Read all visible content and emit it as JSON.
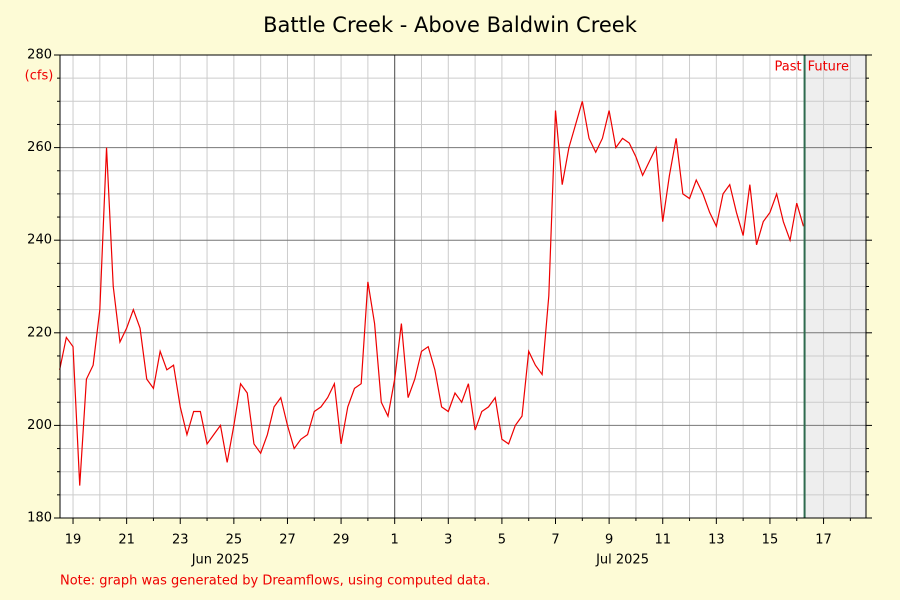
{
  "chart_data": {
    "type": "line",
    "title": "Battle Creek - Above Baldwin Creek",
    "y_label": "(cfs)",
    "note": "Note: graph was generated by Dreamflows, using computed data.",
    "color": "#ee0000",
    "ylim": [
      180,
      280
    ],
    "yticks": [
      180,
      200,
      220,
      240,
      260,
      280
    ],
    "y_minor_ticks": [
      185,
      190,
      195,
      205,
      210,
      215,
      225,
      230,
      235,
      245,
      250,
      255,
      265,
      270,
      275
    ],
    "xlim": [
      "2025-06-18T12:20",
      "2025-07-18T14:00"
    ],
    "xticks": [
      {
        "value": "2025-06-19T00:00",
        "label": "19"
      },
      {
        "value": "2025-06-21T00:00",
        "label": "21"
      },
      {
        "value": "2025-06-23T00:00",
        "label": "23"
      },
      {
        "value": "2025-06-25T00:00",
        "label": "25"
      },
      {
        "value": "2025-06-27T00:00",
        "label": "27"
      },
      {
        "value": "2025-06-29T00:00",
        "label": "29"
      },
      {
        "value": "2025-07-01T00:00",
        "label": "1"
      },
      {
        "value": "2025-07-03T00:00",
        "label": "3"
      },
      {
        "value": "2025-07-05T00:00",
        "label": "5"
      },
      {
        "value": "2025-07-07T00:00",
        "label": "7"
      },
      {
        "value": "2025-07-09T00:00",
        "label": "9"
      },
      {
        "value": "2025-07-11T00:00",
        "label": "11"
      },
      {
        "value": "2025-07-13T00:00",
        "label": "13"
      },
      {
        "value": "2025-07-15T00:00",
        "label": "15"
      },
      {
        "value": "2025-07-17T00:00",
        "label": "17"
      }
    ],
    "x_minor_ticks": [
      "2025-06-20T00:00",
      "2025-06-22T00:00",
      "2025-06-24T00:00",
      "2025-06-26T00:00",
      "2025-06-28T00:00",
      "2025-06-30T00:00",
      "2025-07-02T00:00",
      "2025-07-04T00:00",
      "2025-07-06T00:00",
      "2025-07-08T00:00",
      "2025-07-10T00:00",
      "2025-07-12T00:00",
      "2025-07-14T00:00",
      "2025-07-16T00:00",
      "2025-07-18T00:00"
    ],
    "month_labels": [
      {
        "value": "2025-06-24T12:00",
        "label": "Jun 2025"
      },
      {
        "value": "2025-07-09T12:00",
        "label": "Jul 2025"
      }
    ],
    "month_divider": "2025-07-01T00:00",
    "now": {
      "value": "2025-07-16T07:00",
      "past_label": "Past",
      "future_label": "Future"
    },
    "x": [
      "2025-06-18T12:00",
      "2025-06-18T18:00",
      "2025-06-19T00:00",
      "2025-06-19T06:00",
      "2025-06-19T12:00",
      "2025-06-19T18:00",
      "2025-06-20T00:00",
      "2025-06-20T06:00",
      "2025-06-20T12:00",
      "2025-06-20T18:00",
      "2025-06-21T00:00",
      "2025-06-21T06:00",
      "2025-06-21T12:00",
      "2025-06-21T18:00",
      "2025-06-22T00:00",
      "2025-06-22T06:00",
      "2025-06-22T12:00",
      "2025-06-22T18:00",
      "2025-06-23T00:00",
      "2025-06-23T06:00",
      "2025-06-23T12:00",
      "2025-06-23T18:00",
      "2025-06-24T00:00",
      "2025-06-24T06:00",
      "2025-06-24T12:00",
      "2025-06-24T18:00",
      "2025-06-25T00:00",
      "2025-06-25T06:00",
      "2025-06-25T12:00",
      "2025-06-25T18:00",
      "2025-06-26T00:00",
      "2025-06-26T06:00",
      "2025-06-26T12:00",
      "2025-06-26T18:00",
      "2025-06-27T00:00",
      "2025-06-27T06:00",
      "2025-06-27T12:00",
      "2025-06-27T18:00",
      "2025-06-28T00:00",
      "2025-06-28T06:00",
      "2025-06-28T12:00",
      "2025-06-28T18:00",
      "2025-06-29T00:00",
      "2025-06-29T06:00",
      "2025-06-29T12:00",
      "2025-06-29T18:00",
      "2025-06-30T00:00",
      "2025-06-30T06:00",
      "2025-06-30T12:00",
      "2025-06-30T18:00",
      "2025-07-01T00:00",
      "2025-07-01T06:00",
      "2025-07-01T12:00",
      "2025-07-01T18:00",
      "2025-07-02T00:00",
      "2025-07-02T06:00",
      "2025-07-02T12:00",
      "2025-07-02T18:00",
      "2025-07-03T00:00",
      "2025-07-03T06:00",
      "2025-07-03T12:00",
      "2025-07-03T18:00",
      "2025-07-04T00:00",
      "2025-07-04T06:00",
      "2025-07-04T12:00",
      "2025-07-04T18:00",
      "2025-07-05T00:00",
      "2025-07-05T06:00",
      "2025-07-05T12:00",
      "2025-07-05T18:00",
      "2025-07-06T00:00",
      "2025-07-06T06:00",
      "2025-07-06T12:00",
      "2025-07-06T18:00",
      "2025-07-07T00:00",
      "2025-07-07T06:00",
      "2025-07-07T12:00",
      "2025-07-07T18:00",
      "2025-07-08T00:00",
      "2025-07-08T06:00",
      "2025-07-08T12:00",
      "2025-07-08T18:00",
      "2025-07-09T00:00",
      "2025-07-09T06:00",
      "2025-07-09T12:00",
      "2025-07-09T18:00",
      "2025-07-10T00:00",
      "2025-07-10T06:00",
      "2025-07-10T12:00",
      "2025-07-10T18:00",
      "2025-07-11T00:00",
      "2025-07-11T06:00",
      "2025-07-11T12:00",
      "2025-07-11T18:00",
      "2025-07-12T00:00",
      "2025-07-12T06:00",
      "2025-07-12T12:00",
      "2025-07-12T18:00",
      "2025-07-13T00:00",
      "2025-07-13T06:00",
      "2025-07-13T12:00",
      "2025-07-13T18:00",
      "2025-07-14T00:00",
      "2025-07-14T06:00",
      "2025-07-14T12:00",
      "2025-07-14T18:00",
      "2025-07-15T00:00",
      "2025-07-15T06:00",
      "2025-07-15T12:00",
      "2025-07-15T18:00",
      "2025-07-16T00:00",
      "2025-07-16T06:00"
    ],
    "values": [
      212,
      219,
      217,
      187,
      210,
      213,
      225,
      260,
      230,
      218,
      221,
      225,
      221,
      210,
      208,
      216,
      212,
      213,
      204,
      198,
      203,
      203,
      196,
      198,
      200,
      192,
      200,
      209,
      207,
      196,
      194,
      198,
      204,
      206,
      200,
      195,
      197,
      198,
      203,
      204,
      206,
      209,
      196,
      204,
      208,
      209,
      231,
      222,
      205,
      202,
      210,
      222,
      206,
      210,
      216,
      217,
      212,
      204,
      203,
      207,
      205,
      209,
      199,
      203,
      204,
      206,
      197,
      196,
      200,
      202,
      216,
      213,
      211,
      228,
      268,
      252,
      260,
      265,
      270,
      262,
      259,
      262,
      268,
      260,
      262,
      261,
      258,
      254,
      257,
      260,
      244,
      254,
      262,
      250,
      249,
      253,
      250,
      246,
      243,
      250,
      252,
      246,
      241,
      252,
      239,
      244,
      246,
      250,
      244,
      240,
      248,
      243
    ]
  }
}
